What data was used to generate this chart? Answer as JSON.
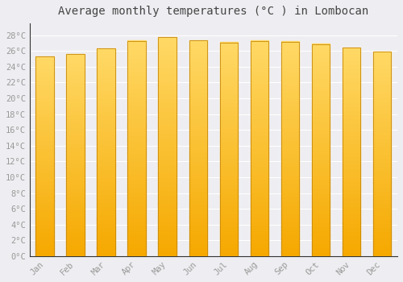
{
  "title": "Average monthly temperatures (°C ) in Lombocan",
  "months": [
    "Jan",
    "Feb",
    "Mar",
    "Apr",
    "May",
    "Jun",
    "Jul",
    "Aug",
    "Sep",
    "Oct",
    "Nov",
    "Dec"
  ],
  "temperatures": [
    25.3,
    25.6,
    26.3,
    27.3,
    27.8,
    27.4,
    27.1,
    27.3,
    27.2,
    26.9,
    26.4,
    25.9
  ],
  "bar_color_bottom": "#F5A800",
  "bar_color_top": "#FFD966",
  "background_color": "#EEEEF2",
  "plot_bg_color": "#EEEEF2",
  "grid_color": "#FFFFFF",
  "bar_edge_color": "#C8880A",
  "ytick_labels": [
    "0°C",
    "2°C",
    "4°C",
    "6°C",
    "8°C",
    "10°C",
    "12°C",
    "14°C",
    "16°C",
    "18°C",
    "20°C",
    "22°C",
    "24°C",
    "26°C",
    "28°C"
  ],
  "ytick_values": [
    0,
    2,
    4,
    6,
    8,
    10,
    12,
    14,
    16,
    18,
    20,
    22,
    24,
    26,
    28
  ],
  "ylim": [
    0,
    29.5
  ],
  "title_fontsize": 10,
  "tick_fontsize": 7.5,
  "tick_color": "#999999",
  "bar_width": 0.6,
  "n_gradient_steps": 50
}
